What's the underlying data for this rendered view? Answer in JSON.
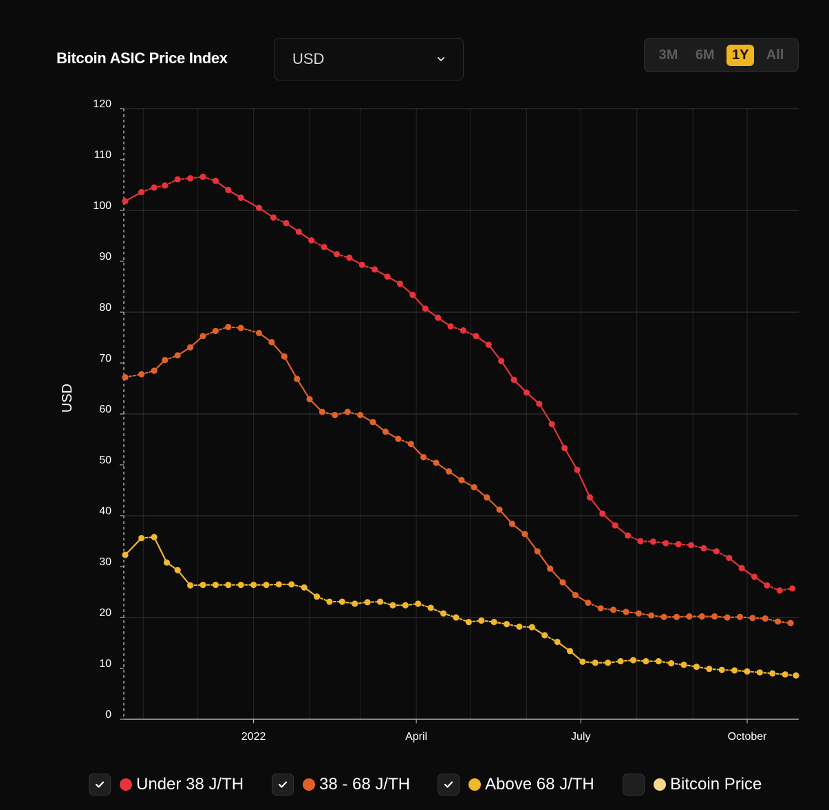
{
  "header": {
    "title": "Bitcoin ASIC Price Index",
    "currency_selected": "USD",
    "ranges": [
      {
        "label": "3M",
        "active": false
      },
      {
        "label": "6M",
        "active": false
      },
      {
        "label": "1Y",
        "active": true
      },
      {
        "label": "All",
        "active": false
      }
    ]
  },
  "legend": [
    {
      "label": "Under 38 J/TH",
      "color": "#e8333a",
      "checked": true
    },
    {
      "label": "38 - 68 J/TH",
      "color": "#e0622a",
      "checked": true
    },
    {
      "label": "Above 68 J/TH",
      "color": "#f0b72f",
      "checked": true
    },
    {
      "label": "Bitcoin Price",
      "color": "#f8d98a",
      "checked": false
    }
  ],
  "chart_data": {
    "type": "line",
    "ylabel": "USD",
    "ylim": [
      0,
      120
    ],
    "y_ticks": [
      0,
      10,
      20,
      30,
      40,
      50,
      60,
      70,
      80,
      90,
      100,
      110,
      120
    ],
    "x_tick_labels": [
      "2022",
      "April",
      "July",
      "October"
    ],
    "x_domain": [
      "2021-10-22",
      "2022-10-28"
    ],
    "x_tick_dates": [
      "2022-01-01",
      "2022-04-01",
      "2022-07-01",
      "2022-10-01"
    ],
    "grid": true,
    "series": [
      {
        "name": "Under 38 J/TH",
        "color": "#e8333a",
        "points": [
          [
            "2021-10-22",
            101.8
          ],
          [
            "2021-10-31",
            103.6
          ],
          [
            "2021-11-07",
            104.5
          ],
          [
            "2021-11-13",
            104.9
          ],
          [
            "2021-11-20",
            106.1
          ],
          [
            "2021-11-27",
            106.3
          ],
          [
            "2021-12-04",
            106.6
          ],
          [
            "2021-12-11",
            105.8
          ],
          [
            "2021-12-18",
            104.0
          ],
          [
            "2021-12-25",
            102.5
          ],
          [
            "2022-01-04",
            100.5
          ],
          [
            "2022-01-12",
            98.6
          ],
          [
            "2022-01-19",
            97.5
          ],
          [
            "2022-01-26",
            95.8
          ],
          [
            "2022-02-02",
            94.1
          ],
          [
            "2022-02-09",
            92.8
          ],
          [
            "2022-02-16",
            91.4
          ],
          [
            "2022-02-23",
            90.7
          ],
          [
            "2022-03-02",
            89.3
          ],
          [
            "2022-03-09",
            88.4
          ],
          [
            "2022-03-16",
            87.0
          ],
          [
            "2022-03-23",
            85.6
          ],
          [
            "2022-03-30",
            83.4
          ],
          [
            "2022-04-06",
            80.7
          ],
          [
            "2022-04-13",
            78.9
          ],
          [
            "2022-04-20",
            77.2
          ],
          [
            "2022-04-27",
            76.4
          ],
          [
            "2022-05-04",
            75.3
          ],
          [
            "2022-05-11",
            73.6
          ],
          [
            "2022-05-18",
            70.4
          ],
          [
            "2022-05-25",
            66.7
          ],
          [
            "2022-06-01",
            64.2
          ],
          [
            "2022-06-08",
            62.0
          ],
          [
            "2022-06-15",
            58.0
          ],
          [
            "2022-06-22",
            53.3
          ],
          [
            "2022-06-29",
            49.0
          ],
          [
            "2022-07-06",
            43.6
          ],
          [
            "2022-07-13",
            40.4
          ],
          [
            "2022-07-20",
            38.1
          ],
          [
            "2022-07-27",
            36.1
          ],
          [
            "2022-08-03",
            35.0
          ],
          [
            "2022-08-10",
            34.9
          ],
          [
            "2022-08-17",
            34.6
          ],
          [
            "2022-08-24",
            34.4
          ],
          [
            "2022-08-31",
            34.2
          ],
          [
            "2022-09-07",
            33.6
          ],
          [
            "2022-09-14",
            33.0
          ],
          [
            "2022-09-21",
            31.7
          ],
          [
            "2022-09-28",
            29.7
          ],
          [
            "2022-10-05",
            28.0
          ],
          [
            "2022-10-12",
            26.3
          ],
          [
            "2022-10-19",
            25.3
          ],
          [
            "2022-10-26",
            25.7
          ]
        ]
      },
      {
        "name": "38 - 68 J/TH",
        "color": "#e0622a",
        "points": [
          [
            "2021-10-22",
            67.2
          ],
          [
            "2021-10-31",
            67.8
          ],
          [
            "2021-11-07",
            68.5
          ],
          [
            "2021-11-13",
            70.6
          ],
          [
            "2021-11-20",
            71.5
          ],
          [
            "2021-11-27",
            73.1
          ],
          [
            "2021-12-04",
            75.3
          ],
          [
            "2021-12-11",
            76.3
          ],
          [
            "2021-12-18",
            77.1
          ],
          [
            "2021-12-25",
            76.9
          ],
          [
            "2022-01-04",
            75.9
          ],
          [
            "2022-01-11",
            74.1
          ],
          [
            "2022-01-18",
            71.3
          ],
          [
            "2022-01-25",
            66.9
          ],
          [
            "2022-02-01",
            62.9
          ],
          [
            "2022-02-08",
            60.4
          ],
          [
            "2022-02-15",
            59.8
          ],
          [
            "2022-02-22",
            60.4
          ],
          [
            "2022-03-01",
            59.8
          ],
          [
            "2022-03-08",
            58.4
          ],
          [
            "2022-03-15",
            56.5
          ],
          [
            "2022-03-22",
            55.1
          ],
          [
            "2022-03-29",
            54.1
          ],
          [
            "2022-04-05",
            51.5
          ],
          [
            "2022-04-12",
            50.4
          ],
          [
            "2022-04-19",
            48.7
          ],
          [
            "2022-04-26",
            47.0
          ],
          [
            "2022-05-03",
            45.6
          ],
          [
            "2022-05-10",
            43.6
          ],
          [
            "2022-05-17",
            41.2
          ],
          [
            "2022-05-24",
            38.4
          ],
          [
            "2022-05-31",
            36.4
          ],
          [
            "2022-06-07",
            33.0
          ],
          [
            "2022-06-14",
            29.6
          ],
          [
            "2022-06-21",
            26.9
          ],
          [
            "2022-06-28",
            24.4
          ],
          [
            "2022-07-05",
            22.9
          ],
          [
            "2022-07-12",
            21.8
          ],
          [
            "2022-07-19",
            21.5
          ],
          [
            "2022-07-26",
            21.1
          ],
          [
            "2022-08-02",
            20.8
          ],
          [
            "2022-08-09",
            20.4
          ],
          [
            "2022-08-16",
            20.1
          ],
          [
            "2022-08-23",
            20.1
          ],
          [
            "2022-08-30",
            20.2
          ],
          [
            "2022-09-06",
            20.2
          ],
          [
            "2022-09-13",
            20.2
          ],
          [
            "2022-09-20",
            20.0
          ],
          [
            "2022-09-27",
            20.1
          ],
          [
            "2022-10-04",
            19.9
          ],
          [
            "2022-10-11",
            19.8
          ],
          [
            "2022-10-18",
            19.2
          ],
          [
            "2022-10-25",
            18.9
          ]
        ]
      },
      {
        "name": "Above 68 J/TH",
        "color": "#f0b72f",
        "points": [
          [
            "2021-10-22",
            32.3
          ],
          [
            "2021-10-31",
            35.6
          ],
          [
            "2021-11-07",
            35.8
          ],
          [
            "2021-11-14",
            30.8
          ],
          [
            "2021-11-20",
            29.3
          ],
          [
            "2021-11-27",
            26.3
          ],
          [
            "2021-12-04",
            26.4
          ],
          [
            "2021-12-11",
            26.4
          ],
          [
            "2021-12-18",
            26.4
          ],
          [
            "2021-12-25",
            26.4
          ],
          [
            "2022-01-01",
            26.4
          ],
          [
            "2022-01-08",
            26.4
          ],
          [
            "2022-01-15",
            26.5
          ],
          [
            "2022-01-22",
            26.5
          ],
          [
            "2022-01-29",
            25.9
          ],
          [
            "2022-02-05",
            24.1
          ],
          [
            "2022-02-12",
            23.1
          ],
          [
            "2022-02-19",
            23.1
          ],
          [
            "2022-02-26",
            22.7
          ],
          [
            "2022-03-05",
            23.0
          ],
          [
            "2022-03-12",
            23.1
          ],
          [
            "2022-03-19",
            22.4
          ],
          [
            "2022-03-26",
            22.4
          ],
          [
            "2022-04-02",
            22.7
          ],
          [
            "2022-04-09",
            21.9
          ],
          [
            "2022-04-16",
            20.8
          ],
          [
            "2022-04-23",
            20.0
          ],
          [
            "2022-04-30",
            19.1
          ],
          [
            "2022-05-07",
            19.4
          ],
          [
            "2022-05-14",
            19.1
          ],
          [
            "2022-05-21",
            18.7
          ],
          [
            "2022-05-28",
            18.2
          ],
          [
            "2022-06-04",
            18.1
          ],
          [
            "2022-06-11",
            16.5
          ],
          [
            "2022-06-18",
            15.2
          ],
          [
            "2022-06-25",
            13.4
          ],
          [
            "2022-07-02",
            11.3
          ],
          [
            "2022-07-09",
            11.1
          ],
          [
            "2022-07-16",
            11.1
          ],
          [
            "2022-07-23",
            11.4
          ],
          [
            "2022-07-30",
            11.6
          ],
          [
            "2022-08-06",
            11.4
          ],
          [
            "2022-08-13",
            11.4
          ],
          [
            "2022-08-20",
            11.0
          ],
          [
            "2022-08-27",
            10.7
          ],
          [
            "2022-09-03",
            10.3
          ],
          [
            "2022-09-10",
            9.9
          ],
          [
            "2022-09-17",
            9.7
          ],
          [
            "2022-09-24",
            9.6
          ],
          [
            "2022-10-01",
            9.4
          ],
          [
            "2022-10-08",
            9.2
          ],
          [
            "2022-10-15",
            9.0
          ],
          [
            "2022-10-22",
            8.8
          ],
          [
            "2022-10-28",
            8.6
          ]
        ]
      }
    ]
  }
}
